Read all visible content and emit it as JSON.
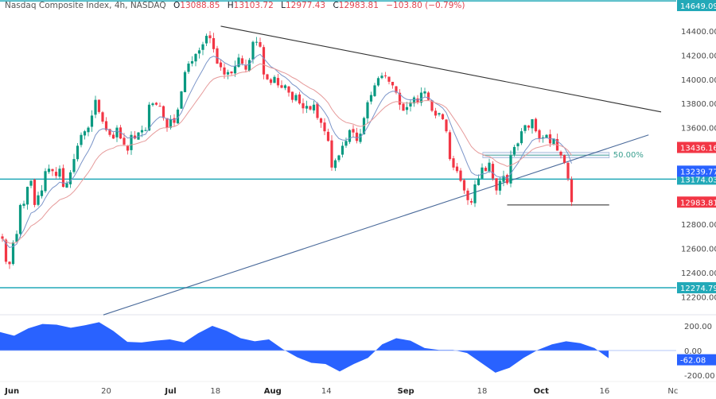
{
  "header": {
    "symbol": "Nasdaq Composite Index, 4h, NASDAQ",
    "open_label": "O",
    "open": "13088.85",
    "high_label": "H",
    "high": "13103.72",
    "low_label": "L",
    "low": "12977.43",
    "close_label": "C",
    "close": "12983.81",
    "change": "−103.80 (−0.79%)"
  },
  "colors": {
    "up": "#089981",
    "down": "#f23645",
    "teal_line": "#22a9b8",
    "ema_fast": "#7b95c9",
    "ema_slow": "#e69a9a",
    "oscillator": "#2962ff",
    "trendline": "#333333",
    "support_line": "#4a6a9a"
  },
  "chart_data": [
    {
      "type": "candlestick",
      "title": "Nasdaq Composite Index, 4h, NASDAQ",
      "ylim": [
        12130,
        14660
      ],
      "y_ticks": [
        "14400.00",
        "14200.00",
        "14000.00",
        "13800.00",
        "13600.00",
        "12800.00",
        "12600.00",
        "12400.00",
        "12200.00"
      ],
      "y_tick_values": [
        14400,
        14200,
        14000,
        13800,
        13600,
        12800,
        12600,
        12400,
        12200
      ],
      "x_ticks": [
        {
          "label": "Jun",
          "bar": 2.7,
          "bold": true
        },
        {
          "label": "20",
          "bar": 29,
          "bold": false
        },
        {
          "label": "Jul",
          "bar": 47,
          "bold": true
        },
        {
          "label": "18",
          "bar": 59.5,
          "bold": false
        },
        {
          "label": "Aug",
          "bar": 75.5,
          "bold": true
        },
        {
          "label": "14",
          "bar": 90.5,
          "bold": false
        },
        {
          "label": "Sep",
          "bar": 112.7,
          "bold": true
        },
        {
          "label": "18",
          "bar": 134,
          "bold": false
        },
        {
          "label": "Oct",
          "bar": 150.5,
          "bold": true
        },
        {
          "label": "16",
          "bar": 168.2,
          "bold": false
        },
        {
          "label": "Nc",
          "bar": 187.3,
          "bold": false
        }
      ],
      "closes": [
        12680,
        12490,
        12470,
        12650,
        12720,
        12960,
        12970,
        13110,
        13160,
        12960,
        13040,
        13080,
        13240,
        13260,
        13240,
        13200,
        13260,
        13110,
        13140,
        13230,
        13340,
        13450,
        13540,
        13570,
        13600,
        13700,
        13830,
        13730,
        13650,
        13580,
        13540,
        13510,
        13600,
        13510,
        13460,
        13410,
        13540,
        13510,
        13560,
        13580,
        13580,
        13790,
        13800,
        13790,
        13780,
        13680,
        13600,
        13670,
        13640,
        13750,
        13900,
        14060,
        14130,
        14150,
        14210,
        14240,
        14290,
        14360,
        14340,
        14250,
        14130,
        14100,
        14040,
        14060,
        14050,
        14110,
        14180,
        14130,
        14080,
        14160,
        14310,
        14310,
        14270,
        14040,
        14000,
        13970,
        14020,
        13950,
        13930,
        13950,
        13890,
        13830,
        13870,
        13800,
        13760,
        13780,
        13750,
        13790,
        13680,
        13640,
        13570,
        13490,
        13270,
        13330,
        13370,
        13450,
        13490,
        13580,
        13560,
        13490,
        13550,
        13680,
        13810,
        13870,
        13950,
        14010,
        14030,
        14030,
        13980,
        13950,
        13890,
        13790,
        13740,
        13770,
        13810,
        13850,
        13810,
        13890,
        13900,
        13830,
        13740,
        13700,
        13720,
        13670,
        13570,
        13340,
        13270,
        13240,
        13160,
        13080,
        13000,
        12980,
        13130,
        13180,
        13270,
        13240,
        13310,
        13180,
        13080,
        13160,
        13200,
        13140,
        13370,
        13440,
        13470,
        13570,
        13620,
        13600,
        13670,
        13570,
        13510,
        13520,
        13540,
        13470,
        13510,
        13410,
        13370,
        13310,
        13180,
        12983.81
      ],
      "moving_averages": [
        {
          "type": "EMA",
          "period": 9
        },
        {
          "type": "EMA",
          "period": 20
        }
      ],
      "horizontal_levels": [
        {
          "price": 14649.09,
          "label": "14649.09"
        },
        {
          "price": 13174.03,
          "label": "13174.03"
        },
        {
          "price": 12274.79,
          "label": "12274.79"
        }
      ],
      "price_tags": [
        {
          "label": "13436.16",
          "price": 13436.16,
          "color": "#f23645"
        },
        {
          "label": "13239.77",
          "price": 13239.77,
          "color": "#2962ff"
        },
        {
          "label": "12983.81",
          "price": 12983.81,
          "color": "#f23645"
        }
      ],
      "trendlines": [
        {
          "from": {
            "bar": 61,
            "price": 14440
          },
          "to": {
            "bar": 184,
            "price": 13730
          },
          "color": "#333333"
        },
        {
          "from": {
            "bar": 28.2,
            "price": 12050
          },
          "to": {
            "bar": 180.5,
            "price": 13540
          },
          "color": "#4a6a9a"
        }
      ],
      "support_segment": {
        "from_bar": 141,
        "to_bar": 169.5,
        "price": 12960
      },
      "fib_zone": {
        "from_bar": 134.2,
        "to_bar": 169.5,
        "top": 13395,
        "bottom": 13350,
        "label": "50.00%"
      }
    },
    {
      "type": "area",
      "ylim": [
        -300,
        300
      ],
      "y_ticks": [
        "200.00",
        "0.00",
        "-200.00"
      ],
      "y_tick_values": [
        200,
        0,
        -200
      ],
      "values": [
        150,
        120,
        180,
        215,
        210,
        185,
        205,
        230,
        160,
        70,
        65,
        80,
        90,
        65,
        140,
        200,
        160,
        100,
        75,
        90,
        10,
        -55,
        -100,
        -110,
        -170,
        -110,
        -60,
        50,
        100,
        80,
        20,
        5,
        5,
        -20,
        -100,
        -180,
        -140,
        -60,
        5,
        50,
        75,
        60,
        20,
        -62.08
      ],
      "last_tag": {
        "label": "-62.08",
        "value": -62.08,
        "color": "#2962ff"
      }
    }
  ]
}
